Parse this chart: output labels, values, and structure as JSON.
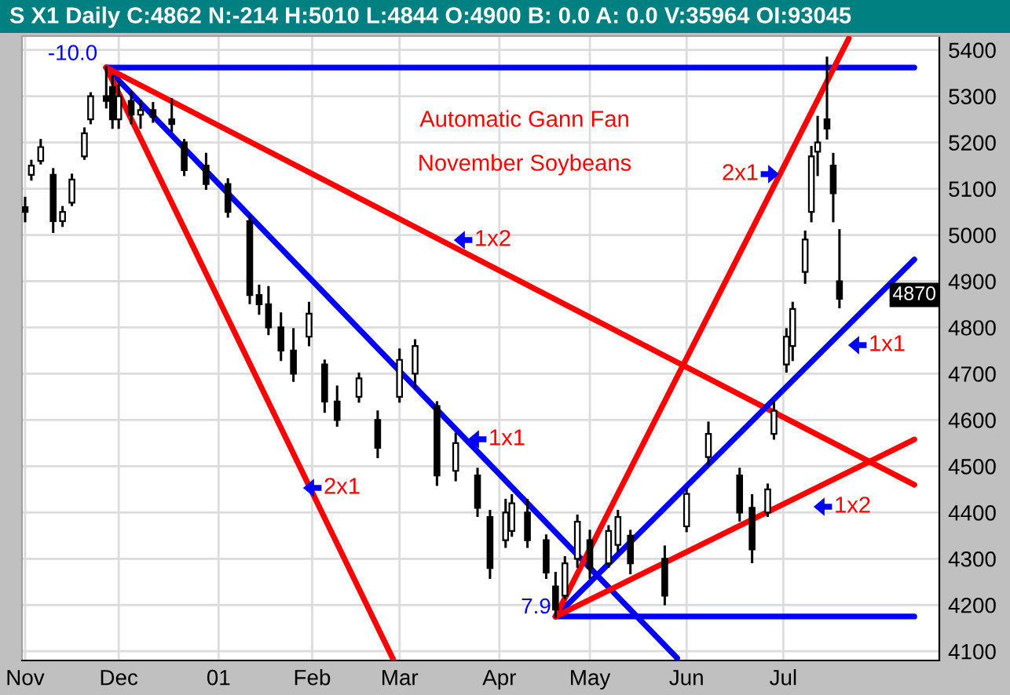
{
  "chart_data": {
    "type": "candlestick",
    "title": "S X1 Daily C:4862 N:-214 H:5010 L:4844 O:4900 B: 0.0 A: 0.0 V:35964 OI:93045",
    "xlim": [
      "2000-10-31",
      "2001-08-21"
    ],
    "xticks": [
      {
        "value": "2000-11-01",
        "label": "Nov"
      },
      {
        "value": "2000-12-01",
        "label": "Dec"
      },
      {
        "value": "2001-01-02",
        "label": "01"
      },
      {
        "value": "2001-02-01",
        "label": "Feb"
      },
      {
        "value": "2001-03-01",
        "label": "Mar"
      },
      {
        "value": "2001-04-02",
        "label": "Apr"
      },
      {
        "value": "2001-05-01",
        "label": "May"
      },
      {
        "value": "2001-06-01",
        "label": "Jun"
      },
      {
        "value": "2001-07-02",
        "label": "Jul"
      }
    ],
    "ylim": [
      4080,
      5430
    ],
    "yticks": [
      4100,
      4200,
      4300,
      4400,
      4500,
      4600,
      4700,
      4800,
      4900,
      5000,
      5100,
      5200,
      5300,
      5400
    ],
    "grid": true,
    "series": [
      {
        "color": "#000000",
        "x": [
          "2000-11-01",
          "2000-11-03",
          "2000-11-06",
          "2000-11-10",
          "2000-11-13",
          "2000-11-16",
          "2000-11-20",
          "2000-11-22",
          "2000-11-27",
          "2000-11-29",
          "2000-12-01",
          "2000-12-05",
          "2000-12-08",
          "2000-12-12",
          "2000-12-18",
          "2000-12-22",
          "2000-12-29",
          "2001-01-05",
          "2001-01-12",
          "2001-01-15",
          "2001-01-18",
          "2001-01-22",
          "2001-01-26",
          "2001-01-31",
          "2001-02-05",
          "2001-02-09",
          "2001-02-16",
          "2001-02-22",
          "2001-03-01",
          "2001-03-06",
          "2001-03-13",
          "2001-03-19",
          "2001-03-26",
          "2001-03-30",
          "2001-04-04",
          "2001-04-06",
          "2001-04-11",
          "2001-04-17",
          "2001-04-20",
          "2001-04-23",
          "2001-04-27",
          "2001-05-01",
          "2001-05-07",
          "2001-05-10",
          "2001-05-14",
          "2001-05-25",
          "2001-06-01",
          "2001-06-08",
          "2001-06-18",
          "2001-06-22",
          "2001-06-27",
          "2001-06-29",
          "2001-07-03",
          "2001-07-05",
          "2001-07-09",
          "2001-07-11",
          "2001-07-13",
          "2001-07-16",
          "2001-07-18",
          "2001-07-20"
        ],
        "ohlc": [
          [
            5060,
            5080,
            5030,
            5050
          ],
          [
            5130,
            5160,
            5120,
            5150
          ],
          [
            5160,
            5205,
            5155,
            5190
          ],
          [
            5130,
            5142,
            5007,
            5030
          ],
          [
            5030,
            5060,
            5020,
            5050
          ],
          [
            5070,
            5130,
            5065,
            5120
          ],
          [
            5170,
            5230,
            5165,
            5220
          ],
          [
            5250,
            5306,
            5242,
            5300
          ],
          [
            5300,
            5362,
            5276,
            5290
          ],
          [
            5320,
            5343,
            5232,
            5250
          ],
          [
            5250,
            5330,
            5232,
            5300
          ],
          [
            5290,
            5310,
            5242,
            5260
          ],
          [
            5260,
            5290,
            5232,
            5270
          ],
          [
            5270,
            5285,
            5245,
            5255
          ],
          [
            5250,
            5293,
            5225,
            5240
          ],
          [
            5200,
            5205,
            5130,
            5140
          ],
          [
            5150,
            5175,
            5100,
            5110
          ],
          [
            5110,
            5120,
            5040,
            5050
          ],
          [
            5030,
            5040,
            4853,
            4870
          ],
          [
            4870,
            4890,
            4830,
            4850
          ],
          [
            4850,
            4887,
            4786,
            4800
          ],
          [
            4800,
            4830,
            4730,
            4750
          ],
          [
            4750,
            4796,
            4685,
            4700
          ],
          [
            4780,
            4853,
            4762,
            4830
          ],
          [
            4720,
            4728,
            4618,
            4640
          ],
          [
            4640,
            4672,
            4588,
            4600
          ],
          [
            4650,
            4700,
            4640,
            4690
          ],
          [
            4600,
            4618,
            4520,
            4540
          ],
          [
            4650,
            4752,
            4640,
            4730
          ],
          [
            4700,
            4772,
            4672,
            4760
          ],
          [
            4630,
            4638,
            4460,
            4480
          ],
          [
            4490,
            4570,
            4470,
            4550
          ],
          [
            4480,
            4494,
            4393,
            4410
          ],
          [
            4390,
            4403,
            4259,
            4280
          ],
          [
            4340,
            4427,
            4326,
            4400
          ],
          [
            4360,
            4437,
            4350,
            4420
          ],
          [
            4400,
            4427,
            4326,
            4340
          ],
          [
            4340,
            4350,
            4259,
            4270
          ],
          [
            4240,
            4269,
            4175,
            4190
          ],
          [
            4220,
            4303,
            4215,
            4290
          ],
          [
            4300,
            4393,
            4283,
            4380
          ],
          [
            4340,
            4360,
            4259,
            4280
          ],
          [
            4290,
            4370,
            4283,
            4360
          ],
          [
            4330,
            4403,
            4316,
            4390
          ],
          [
            4350,
            4360,
            4269,
            4290
          ],
          [
            4300,
            4326,
            4202,
            4220
          ],
          [
            4370,
            4450,
            4360,
            4440
          ],
          [
            4520,
            4594,
            4504,
            4570
          ],
          [
            4480,
            4494,
            4383,
            4400
          ],
          [
            4410,
            4437,
            4293,
            4320
          ],
          [
            4400,
            4460,
            4393,
            4450
          ],
          [
            4570,
            4638,
            4560,
            4620
          ],
          [
            4720,
            4796,
            4705,
            4780
          ],
          [
            4760,
            4853,
            4730,
            4840
          ],
          [
            4920,
            5007,
            4897,
            4990
          ],
          [
            5050,
            5190,
            5030,
            5170
          ],
          [
            5180,
            5255,
            5130,
            5200
          ],
          [
            5250,
            5383,
            5209,
            5230
          ],
          [
            5150,
            5175,
            5030,
            5090
          ],
          [
            4900,
            5010,
            4844,
            4862
          ]
        ]
      },
      {
        "type": "line",
        "color": "#0000ff",
        "x": [
          "2000-11-27",
          "2001-08-13"
        ],
        "values": [
          5362,
          5362
        ]
      },
      {
        "type": "line",
        "color": "#0000ff",
        "x": [
          "2000-11-27",
          "2001-05-29"
        ],
        "values": [
          5362,
          4085
        ]
      },
      {
        "type": "line",
        "color": "#ff0000",
        "x": [
          "2000-11-27",
          "2001-08-13"
        ],
        "values": [
          5362,
          4460
        ]
      },
      {
        "type": "line",
        "color": "#ff0000",
        "x": [
          "2000-11-27",
          "2001-02-27"
        ],
        "values": [
          5362,
          4082
        ]
      },
      {
        "type": "line",
        "color": "#0000ff",
        "x": [
          "2001-04-20",
          "2001-08-13"
        ],
        "values": [
          4175,
          4175
        ]
      },
      {
        "type": "line",
        "color": "#0000ff",
        "x": [
          "2001-04-20",
          "2001-08-13"
        ],
        "values": [
          4175,
          4947
        ]
      },
      {
        "type": "line",
        "color": "#ff0000",
        "x": [
          "2001-04-20",
          "2001-08-13"
        ],
        "values": [
          4175,
          4558
        ]
      },
      {
        "type": "line",
        "color": "#ff0000",
        "x": [
          "2001-04-20",
          "2001-07-23"
        ],
        "values": [
          4175,
          5425
        ]
      }
    ],
    "annotations": [
      "Automatic Gann Fan",
      "November Soybeans",
      {
        "text": "-10.0",
        "x": "2000-11-27",
        "y": 5362
      },
      {
        "text": "7.9",
        "x": "2001-04-20",
        "y": 4175
      },
      "1x2",
      "1x1",
      "2x1",
      "2x1",
      "1x1",
      "1x2",
      "4870"
    ]
  }
}
